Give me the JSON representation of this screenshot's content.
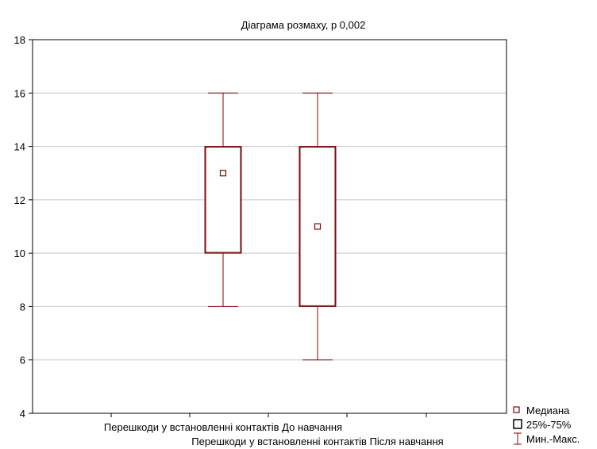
{
  "chart_data": {
    "type": "boxplot",
    "title": "Діаграма розмаху, p 0,002",
    "xlabel": "",
    "ylabel": "",
    "ylim": [
      4,
      18
    ],
    "yticks": [
      4,
      6,
      8,
      10,
      12,
      14,
      16,
      18
    ],
    "grid": true,
    "categories": [
      "Перешкоди у встановленні контактів До навчання",
      "Перешкоди у встановленні контактів Після навчання"
    ],
    "boxes": [
      {
        "median": 13,
        "q1": 10,
        "q3": 14,
        "min": 8,
        "max": 16
      },
      {
        "median": 11,
        "q1": 8,
        "q3": 14,
        "min": 6,
        "max": 16
      }
    ],
    "legend": {
      "position": "bottom-right",
      "items": [
        "Медиана",
        "25%-75%",
        "Мин.-Макс."
      ]
    },
    "colors": {
      "series": "#7a0a0a",
      "grid": "#c8c8c8",
      "frame": "#000000"
    }
  }
}
